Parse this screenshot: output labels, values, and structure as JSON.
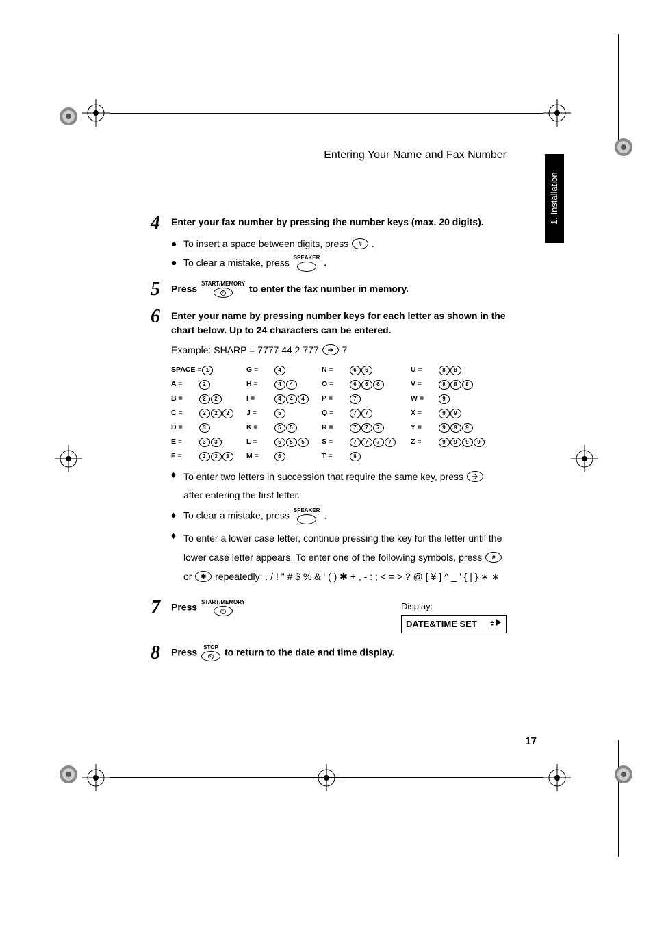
{
  "header": "Entering Your Name and Fax Number",
  "tab": "1. Installation",
  "page_number": "17",
  "buttons": {
    "hash": "#",
    "star": "✱",
    "speaker": "SPEAKER",
    "start_memory": "START/MEMORY",
    "stop": "STOP"
  },
  "steps": {
    "s4": {
      "n": "4",
      "text": "Enter your fax number by pressing the number keys (max. 20 digits).",
      "b1a": "To insert a space between digits, press ",
      "b1b": " .",
      "b2a": "To clear a mistake, press ",
      "b2b": "."
    },
    "s5": {
      "n": "5",
      "text_a": "Press ",
      "text_b": " to enter the fax number in memory."
    },
    "s6": {
      "n": "6",
      "text": "Enter your name by pressing number keys for each letter as shown in the chart below. Up to 24 characters can be entered.",
      "ex_a": "Example: SHARP = 7777  44  2  777 ",
      "ex_b": " 7",
      "t1a": "To enter two letters in succession that require the same key, press ",
      "t1b": "after entering the first letter.",
      "t2a": "To clear a mistake, press ",
      "t2b": ".",
      "t3a": "To enter a lower case letter, continue pressing the key for the letter until the lower case letter appears. To enter one of the following symbols, press ",
      "t3c": "or ",
      "t3d": " repeatedly: ",
      "symbols": ". / ! \" # $ % & ' ( ) ✱ + , - : ; < = > ? @ [ ¥ ] ^ _ ' { | } ∗  ∗"
    },
    "s7": {
      "n": "7",
      "text": "Press ",
      "disp_label": "Display:",
      "disp_value": "DATE&TIME SET"
    },
    "s8": {
      "n": "8",
      "text_a": "Press ",
      "text_b": " to return to the date and time display."
    }
  },
  "chart": {
    "c1": [
      {
        "l": "SPACE =",
        "k": [
          "1"
        ]
      },
      {
        "l": "A =",
        "k": [
          "2"
        ]
      },
      {
        "l": "B =",
        "k": [
          "2",
          "2"
        ]
      },
      {
        "l": "C =",
        "k": [
          "2",
          "2",
          "2"
        ]
      },
      {
        "l": "D =",
        "k": [
          "3"
        ]
      },
      {
        "l": "E =",
        "k": [
          "3",
          "3"
        ]
      },
      {
        "l": "F =",
        "k": [
          "3",
          "3",
          "3"
        ]
      }
    ],
    "c2": [
      {
        "l": "G =",
        "k": [
          "4"
        ]
      },
      {
        "l": "H =",
        "k": [
          "4",
          "4"
        ]
      },
      {
        "l": "I =",
        "k": [
          "4",
          "4",
          "4"
        ]
      },
      {
        "l": "J =",
        "k": [
          "5"
        ]
      },
      {
        "l": "K =",
        "k": [
          "5",
          "5"
        ]
      },
      {
        "l": "L =",
        "k": [
          "5",
          "5",
          "5"
        ]
      },
      {
        "l": "M =",
        "k": [
          "6"
        ]
      }
    ],
    "c3": [
      {
        "l": "N =",
        "k": [
          "6",
          "6"
        ]
      },
      {
        "l": "O =",
        "k": [
          "6",
          "6",
          "6"
        ]
      },
      {
        "l": "P =",
        "k": [
          "7"
        ]
      },
      {
        "l": "Q =",
        "k": [
          "7",
          "7"
        ]
      },
      {
        "l": "R =",
        "k": [
          "7",
          "7",
          "7"
        ]
      },
      {
        "l": "S =",
        "k": [
          "7",
          "7",
          "7",
          "7"
        ]
      },
      {
        "l": "T =",
        "k": [
          "8"
        ]
      }
    ],
    "c4": [
      {
        "l": "U =",
        "k": [
          "8",
          "8"
        ]
      },
      {
        "l": "V =",
        "k": [
          "8",
          "8",
          "8"
        ]
      },
      {
        "l": "W =",
        "k": [
          "9"
        ]
      },
      {
        "l": "X =",
        "k": [
          "9",
          "9"
        ]
      },
      {
        "l": "Y =",
        "k": [
          "9",
          "9",
          "9"
        ]
      },
      {
        "l": "Z =",
        "k": [
          "9",
          "9",
          "9",
          "9"
        ]
      }
    ]
  }
}
